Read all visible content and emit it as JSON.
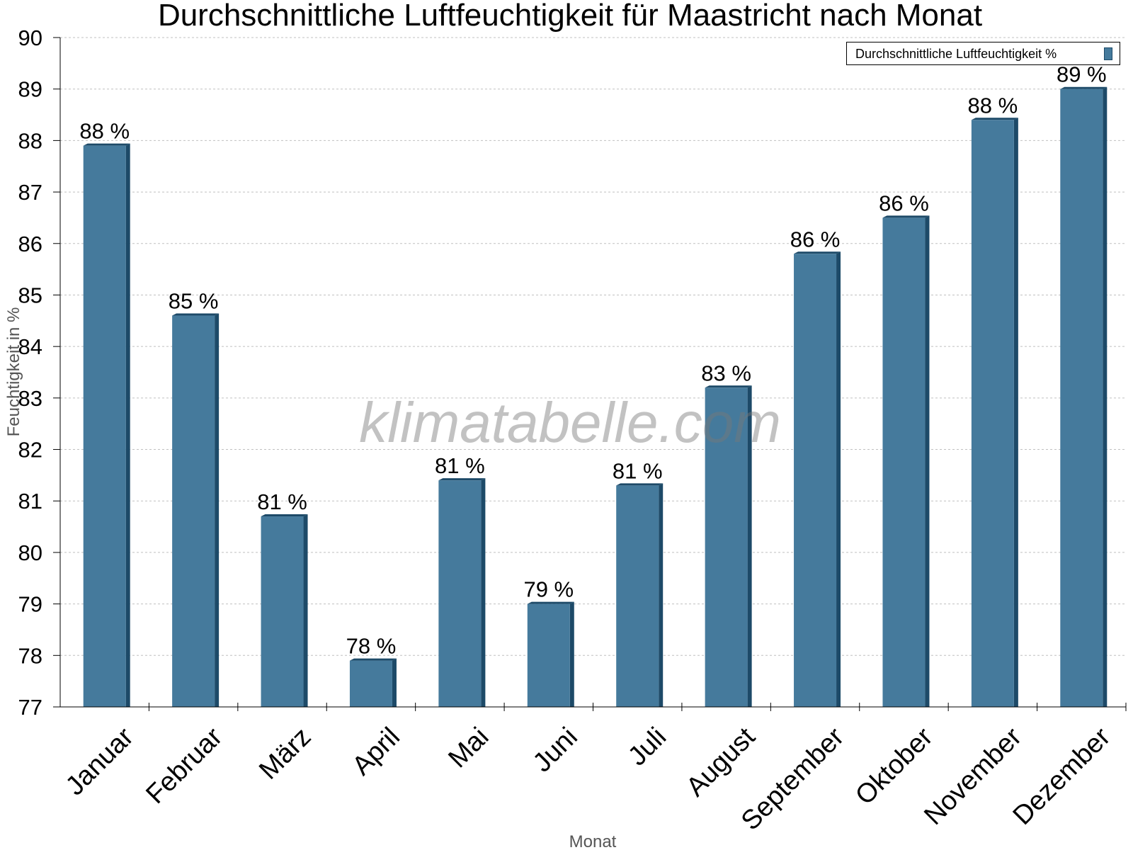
{
  "chart_data": {
    "type": "bar",
    "title": "Durchschnittliche Luftfeuchtigkeit für Maastricht nach Monat",
    "xlabel": "Monat",
    "ylabel": "Feuchtigkeit in %",
    "categories": [
      "Januar",
      "Februar",
      "März",
      "April",
      "Mai",
      "Juni",
      "Juli",
      "August",
      "September",
      "Oktober",
      "November",
      "Dezember"
    ],
    "series": [
      {
        "name": "Durchschnittliche Luftfeuchtigkeit %",
        "values": [
          87.9,
          84.6,
          80.7,
          77.9,
          81.4,
          79.0,
          81.3,
          83.2,
          85.8,
          86.5,
          88.4,
          89.0
        ],
        "data_labels": [
          "88 %",
          "85 %",
          "81 %",
          "78 %",
          "81 %",
          "79 %",
          "81 %",
          "83 %",
          "86 %",
          "86 %",
          "88 %",
          "89 %"
        ]
      }
    ],
    "ylim": [
      77,
      90
    ],
    "yticks": [
      77,
      78,
      79,
      80,
      81,
      82,
      83,
      84,
      85,
      86,
      87,
      88,
      89,
      90
    ],
    "grid": true,
    "legend_position": "top-right",
    "colors": {
      "bar": "#457a9c",
      "bar_dark": "#1d4a68",
      "grid": "#c0c0c0",
      "axis_title": "#555555"
    }
  },
  "watermark": "klimatabelle.com"
}
